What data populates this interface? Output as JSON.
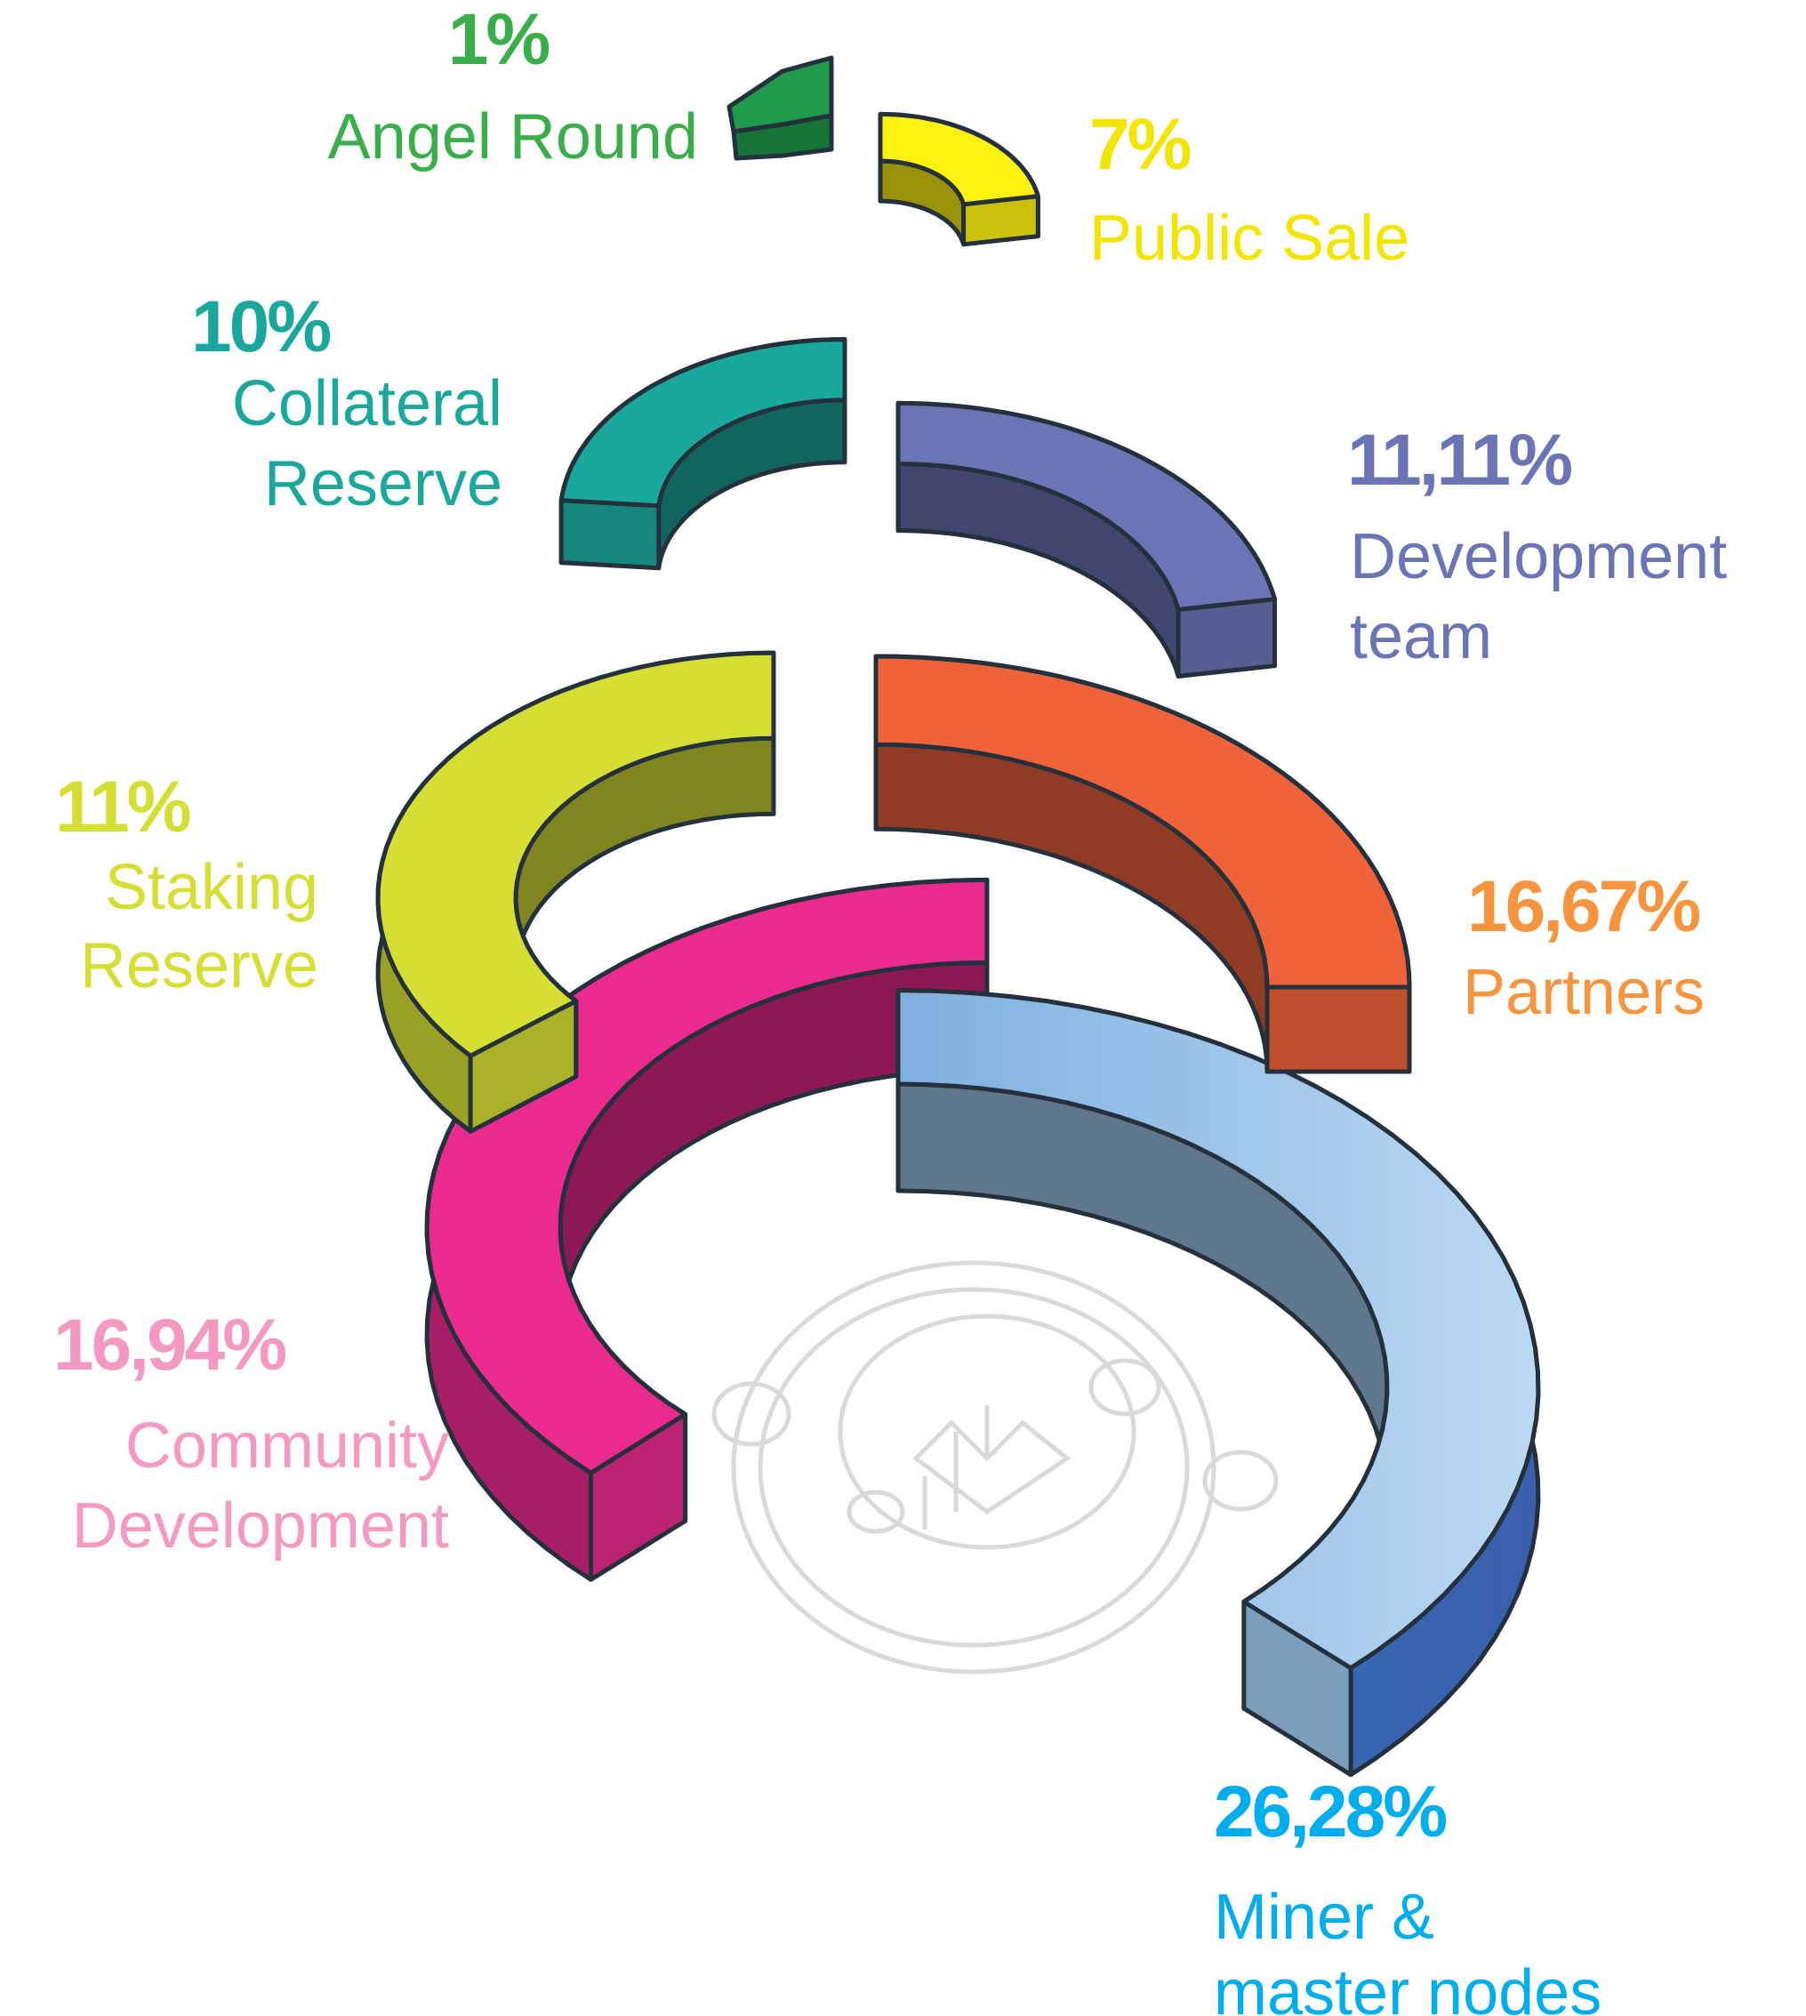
{
  "chart_data": {
    "type": "pie",
    "style": "exploded 3d isometric ring segments",
    "legend": "labels next to each segment",
    "slices": [
      {
        "label_lines": [
          "Angel Round"
        ],
        "pct_text": "1%",
        "value": 1,
        "color": "#1f9a4a",
        "label_color": "#3aae4a"
      },
      {
        "label_lines": [
          "Public Sale"
        ],
        "pct_text": "7%",
        "value": 7,
        "color": "#fff20f",
        "label_color": "#f2e600"
      },
      {
        "label_lines": [
          "Collateral",
          "Reserve"
        ],
        "pct_text": "10%",
        "value": 10,
        "color": "#1aa89c",
        "label_color": "#1aa89c"
      },
      {
        "label_lines": [
          "Development",
          "team"
        ],
        "pct_text": "11,11%",
        "value": 11.11,
        "color": "#6b74b5",
        "label_color": "#6b74b5"
      },
      {
        "label_lines": [
          "Staking",
          "Reserve"
        ],
        "pct_text": "11%",
        "value": 11,
        "color": "#d5df33",
        "label_color": "#d5df33"
      },
      {
        "label_lines": [
          "Partners"
        ],
        "pct_text": "16,67%",
        "value": 16.67,
        "color": "#f0633a",
        "label_color": "#f7943d"
      },
      {
        "label_lines": [
          "Community",
          "Development"
        ],
        "pct_text": "16,94%",
        "value": 16.94,
        "color": "#ea2a8d",
        "label_color": "#f49ac1"
      },
      {
        "label_lines": [
          "Miner &",
          "master nodes"
        ],
        "pct_text": "26,28%",
        "value": 26.28,
        "color": "#9cc6ea",
        "label_color": "#00aeef"
      }
    ]
  },
  "watermark": {
    "icon": "kb-coin-logo-icon",
    "color": "#d9d9d9"
  }
}
